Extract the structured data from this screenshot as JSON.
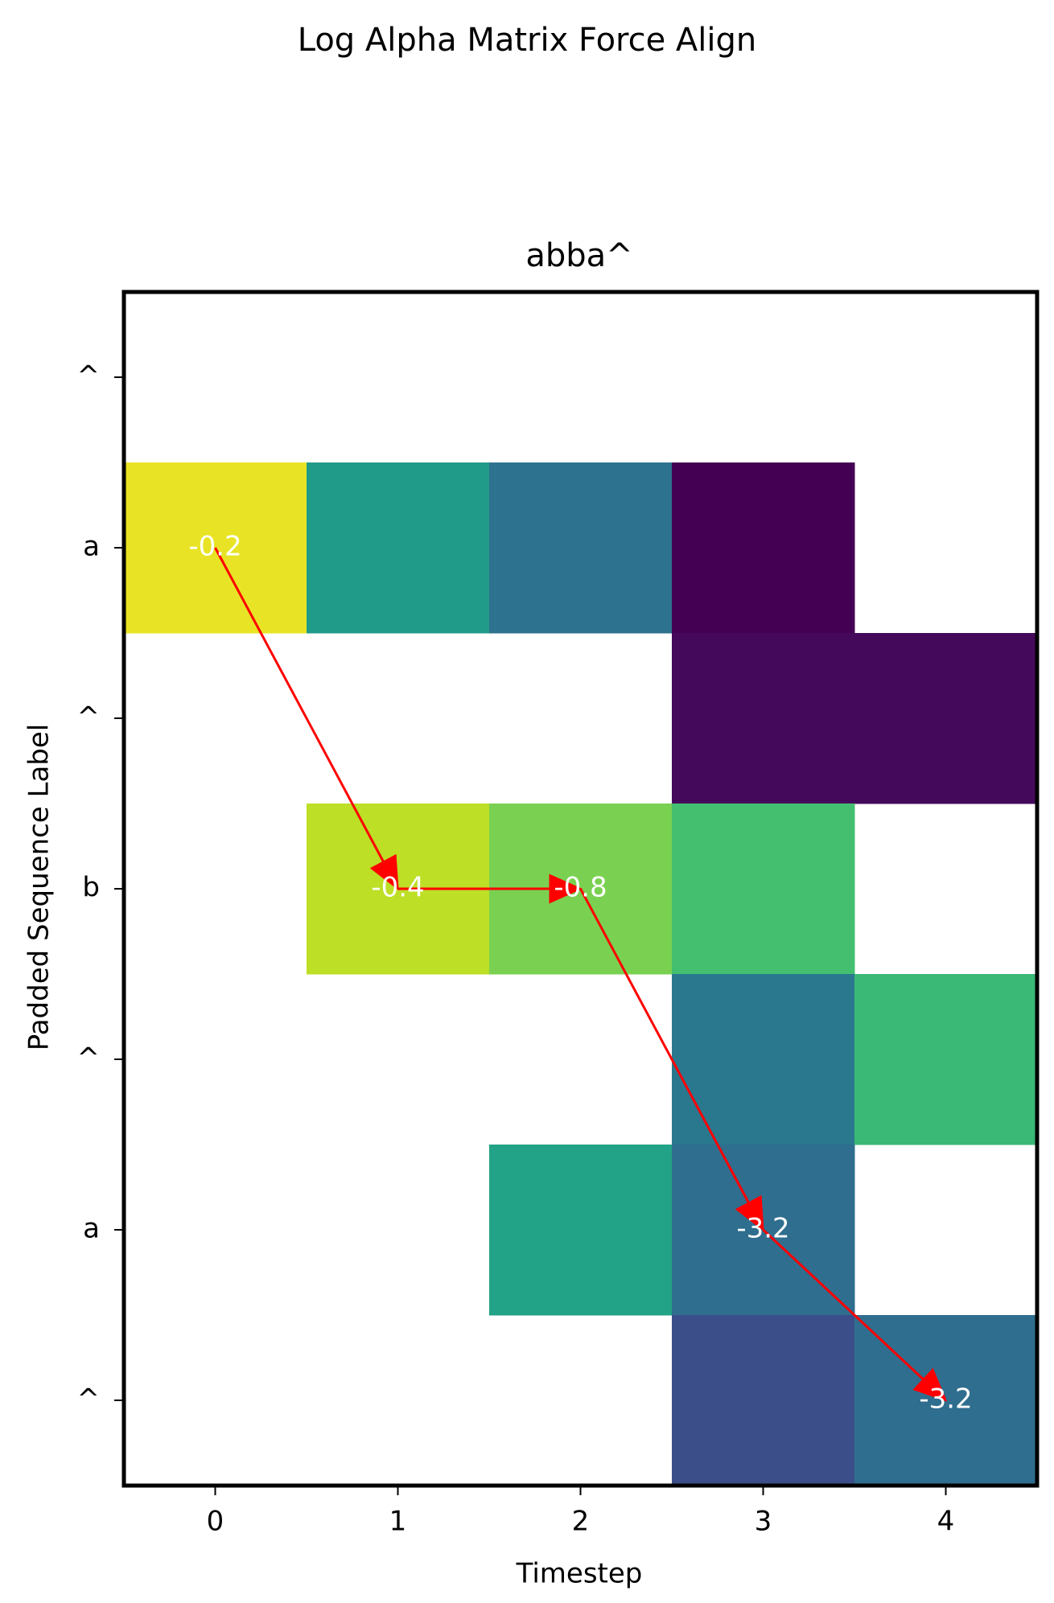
{
  "chart_data": {
    "type": "heatmap",
    "suptitle": "Log Alpha Matrix Force Align",
    "title": "abba^",
    "xlabel": "Timestep",
    "ylabel": "Padded Sequence Label",
    "x_ticks": [
      "0",
      "1",
      "2",
      "3",
      "4"
    ],
    "y_ticks": [
      "^",
      "a",
      "^",
      "b",
      "^",
      "a",
      "^"
    ],
    "colormap": "viridis",
    "color_range": [
      0,
      1
    ],
    "cells": [
      {
        "row": 1,
        "col": 0,
        "value": 0.98
      },
      {
        "row": 1,
        "col": 1,
        "value": 0.68
      },
      {
        "row": 1,
        "col": 2,
        "value": 0.47
      },
      {
        "row": 1,
        "col": 3,
        "value": 0.0
      },
      {
        "row": 2,
        "col": 3,
        "value": 0.03
      },
      {
        "row": 2,
        "col": 4,
        "value": 0.03
      },
      {
        "row": 3,
        "col": 1,
        "value": 0.94
      },
      {
        "row": 3,
        "col": 2,
        "value": 0.88
      },
      {
        "row": 3,
        "col": 3,
        "value": 0.82
      },
      {
        "row": 4,
        "col": 3,
        "value": 0.5
      },
      {
        "row": 4,
        "col": 4,
        "value": 0.8
      },
      {
        "row": 5,
        "col": 2,
        "value": 0.72
      },
      {
        "row": 5,
        "col": 3,
        "value": 0.45
      },
      {
        "row": 6,
        "col": 3,
        "value": 0.3
      },
      {
        "row": 6,
        "col": 4,
        "value": 0.45
      }
    ],
    "path": [
      {
        "row": 1,
        "col": 0,
        "label": "-0.2"
      },
      {
        "row": 3,
        "col": 1,
        "label": "-0.4"
      },
      {
        "row": 3,
        "col": 2,
        "label": "-0.8"
      },
      {
        "row": 5,
        "col": 3,
        "label": "-3.2"
      },
      {
        "row": 6,
        "col": 4,
        "label": "-3.2"
      }
    ],
    "arrow_color": "#ff0000",
    "label_color": "#ffffff",
    "frame_color": "#000000"
  }
}
